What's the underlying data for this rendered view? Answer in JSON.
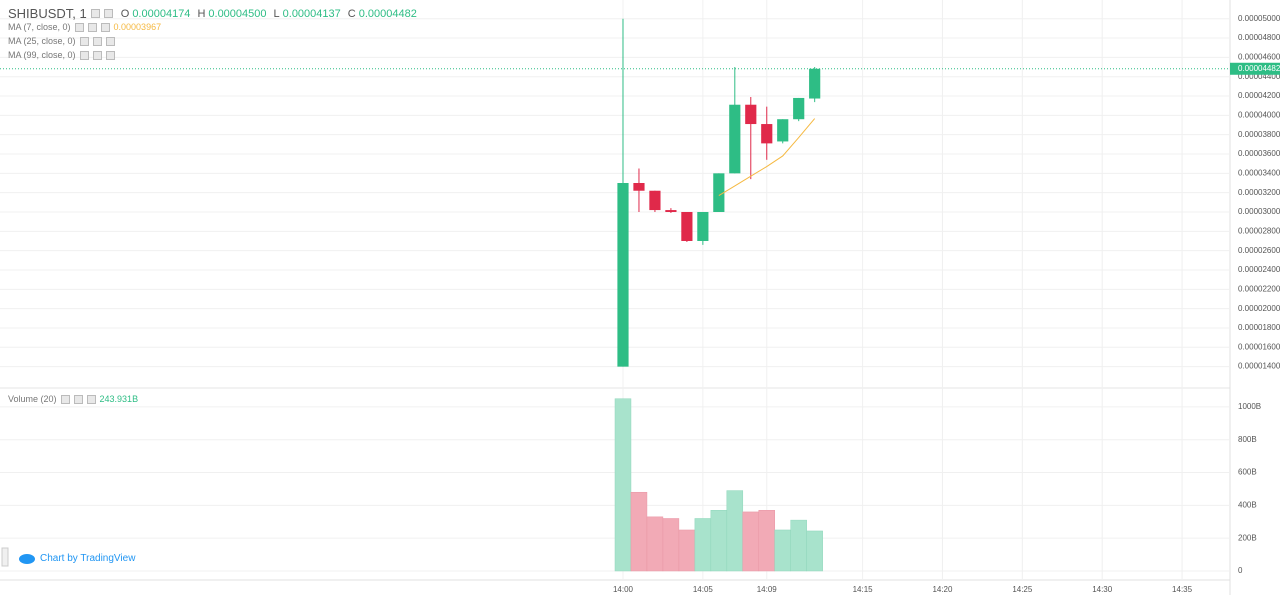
{
  "chart_data": {
    "type": "candlestick",
    "title": "SHIBUSDT, 1",
    "legend": [
      {
        "key": "O",
        "label": "0.00004174"
      },
      {
        "key": "H",
        "label": "0.00004500"
      },
      {
        "key": "L",
        "label": "0.00004137"
      },
      {
        "key": "C",
        "label": "0.00004482"
      }
    ],
    "x": [
      "14:00",
      "14:01",
      "14:02",
      "14:03",
      "14:04",
      "14:05",
      "14:06",
      "14:07",
      "14:08",
      "14:09",
      "14:10",
      "14:11",
      "14:12"
    ],
    "open": [
      1.4e-05,
      3.3e-05,
      3.22e-05,
      3.02e-05,
      3e-05,
      2.7e-05,
      3e-05,
      3.4e-05,
      4.11e-05,
      3.91e-05,
      3.73e-05,
      3.96e-05,
      4.174e-05
    ],
    "high": [
      5e-05,
      3.45e-05,
      3.22e-05,
      3.04e-05,
      3e-05,
      3e-05,
      3.4e-05,
      4.5e-05,
      4.19e-05,
      4.09e-05,
      3.96e-05,
      4.18e-05,
      4.5e-05
    ],
    "low": [
      1.4e-05,
      3e-05,
      3e-05,
      2.99e-05,
      2.69e-05,
      2.66e-05,
      3e-05,
      3.4e-05,
      3.34e-05,
      3.54e-05,
      3.71e-05,
      3.94e-05,
      4.137e-05
    ],
    "close": [
      3.3e-05,
      3.22e-05,
      3.02e-05,
      3e-05,
      2.7e-05,
      3e-05,
      3.4e-05,
      4.11e-05,
      3.91e-05,
      3.71e-05,
      3.96e-05,
      4.18e-05,
      4.482e-05
    ],
    "up_color": "#2ebd85",
    "down_color": "#e0294a",
    "last_price_label": "0.00004482",
    "indicators": [
      {
        "name": "MA (7, close, 0)",
        "color": "#f5b942",
        "value_label": "0.00003967",
        "values": [
          null,
          null,
          null,
          null,
          null,
          null,
          3.17e-05,
          3.27e-05,
          3.37e-05,
          3.47e-05,
          3.58e-05,
          3.77e-05,
          3.967e-05
        ]
      },
      {
        "name": "MA (25, close, 0)"
      },
      {
        "name": "MA (99, close, 0)"
      }
    ],
    "ylim": [
      1.21e-05,
      5.09e-05
    ],
    "yticks": [
      {
        "value": 1.4e-05,
        "label": "0.00001400"
      },
      {
        "value": 1.6e-05,
        "label": "0.00001600"
      },
      {
        "value": 1.8e-05,
        "label": "0.00001800"
      },
      {
        "value": 2e-05,
        "label": "0.00002000"
      },
      {
        "value": 2.2e-05,
        "label": "0.00002200"
      },
      {
        "value": 2.4e-05,
        "label": "0.00002400"
      },
      {
        "value": 2.6e-05,
        "label": "0.00002600"
      },
      {
        "value": 2.8e-05,
        "label": "0.00002800"
      },
      {
        "value": 3e-05,
        "label": "0.00003000"
      },
      {
        "value": 3.2e-05,
        "label": "0.00003200"
      },
      {
        "value": 3.4e-05,
        "label": "0.00003400"
      },
      {
        "value": 3.6e-05,
        "label": "0.00003600"
      },
      {
        "value": 3.8e-05,
        "label": "0.00003800"
      },
      {
        "value": 4e-05,
        "label": "0.00004000"
      },
      {
        "value": 4.2e-05,
        "label": "0.00004200"
      },
      {
        "value": 4.4e-05,
        "label": "0.00004400"
      },
      {
        "value": 4.6e-05,
        "label": "0.00004600"
      },
      {
        "value": 4.8e-05,
        "label": "0.00004800"
      },
      {
        "value": 5e-05,
        "label": "0.00005000"
      }
    ],
    "volume": {
      "name": "Volume (20)",
      "value_label": "243.931B",
      "values": [
        1050,
        480,
        330,
        320,
        250,
        320,
        370,
        490,
        360,
        370,
        250,
        310,
        243.931
      ],
      "up_color": "#a8e3cc",
      "down_color": "#f2aab6",
      "ylim": [
        -55,
        1091
      ],
      "yticks": [
        0,
        {
          "value": 200,
          "label": "200B"
        },
        {
          "value": 400,
          "label": "400B"
        },
        {
          "value": 600,
          "label": "600B"
        },
        {
          "value": 800,
          "label": "800B"
        },
        {
          "value": 1000,
          "label": "1000B"
        }
      ]
    },
    "xlim": [
      "13:21",
      "14:38"
    ],
    "xticks": [
      "14:00",
      "14:05",
      "14:09",
      "14:15",
      "14:20",
      "14:25",
      "14:30",
      "14:35"
    ],
    "grid": true,
    "credit": "Chart by TradingView"
  }
}
